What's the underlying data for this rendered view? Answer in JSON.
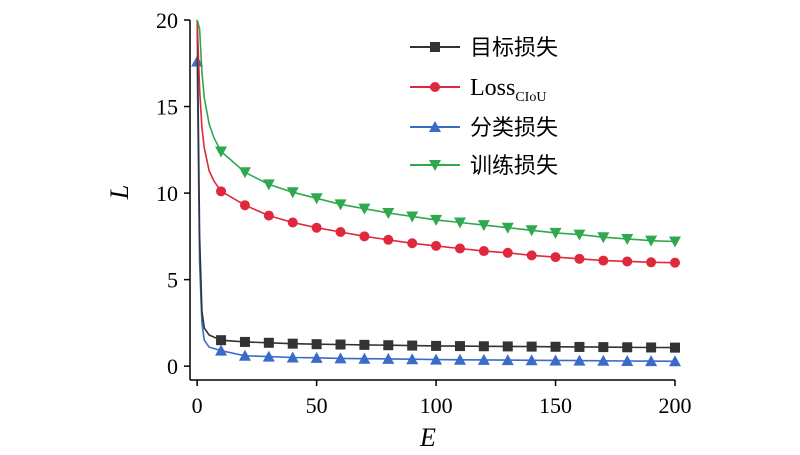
{
  "chart_data": {
    "type": "line",
    "xlabel": "E",
    "ylabel": "L",
    "xlim": [
      -3,
      200
    ],
    "ylim": [
      -0.8,
      20
    ],
    "x_ticks": [
      0,
      50,
      100,
      150,
      200
    ],
    "y_ticks": [
      0,
      5,
      10,
      15,
      20
    ],
    "legend_position": "top-right",
    "grid": false,
    "series": [
      {
        "name": "目标损失",
        "color": "#333333",
        "marker": "square",
        "x": [
          0,
          1,
          2,
          3,
          5,
          10,
          20,
          30,
          40,
          50,
          60,
          70,
          80,
          90,
          100,
          110,
          120,
          130,
          140,
          150,
          160,
          170,
          180,
          190,
          200
        ],
        "y": [
          20,
          7.5,
          3.2,
          2.2,
          1.8,
          1.5,
          1.4,
          1.35,
          1.3,
          1.27,
          1.25,
          1.23,
          1.21,
          1.19,
          1.17,
          1.16,
          1.15,
          1.14,
          1.13,
          1.12,
          1.11,
          1.1,
          1.09,
          1.08,
          1.07
        ]
      },
      {
        "name_main": "Loss",
        "name_sub": "CIoU",
        "color": "#e0283c",
        "marker": "circle",
        "x": [
          0,
          1,
          2,
          3,
          5,
          7,
          10,
          20,
          30,
          40,
          50,
          60,
          70,
          80,
          90,
          100,
          110,
          120,
          130,
          140,
          150,
          160,
          170,
          180,
          190,
          200
        ],
        "y": [
          20,
          16.0,
          13.8,
          12.6,
          11.3,
          10.7,
          10.1,
          9.3,
          8.7,
          8.3,
          8.0,
          7.75,
          7.5,
          7.3,
          7.1,
          6.95,
          6.8,
          6.65,
          6.55,
          6.4,
          6.3,
          6.2,
          6.1,
          6.05,
          6.0,
          5.98
        ]
      },
      {
        "name": "分类损失",
        "color": "#3a6bc8",
        "marker": "triangle-up",
        "x": [
          0,
          1,
          2,
          3,
          5,
          10,
          20,
          30,
          40,
          50,
          60,
          70,
          80,
          90,
          100,
          110,
          120,
          130,
          140,
          150,
          160,
          170,
          180,
          190,
          200
        ],
        "y": [
          17.6,
          6.0,
          2.5,
          1.5,
          1.1,
          0.9,
          0.6,
          0.55,
          0.5,
          0.48,
          0.45,
          0.43,
          0.42,
          0.4,
          0.38,
          0.37,
          0.36,
          0.35,
          0.34,
          0.33,
          0.32,
          0.31,
          0.3,
          0.29,
          0.28
        ]
      },
      {
        "name": "训练损失",
        "color": "#2fa84f",
        "marker": "triangle-down",
        "x": [
          0,
          1,
          2,
          3,
          5,
          7,
          10,
          20,
          30,
          40,
          50,
          60,
          70,
          80,
          90,
          100,
          110,
          120,
          130,
          140,
          150,
          160,
          170,
          180,
          190,
          200
        ],
        "y": [
          20,
          19.5,
          17.0,
          15.5,
          14.0,
          13.2,
          12.4,
          11.2,
          10.5,
          10.05,
          9.7,
          9.35,
          9.1,
          8.85,
          8.65,
          8.45,
          8.3,
          8.15,
          8.0,
          7.85,
          7.7,
          7.6,
          7.45,
          7.35,
          7.25,
          7.2
        ]
      }
    ],
    "marker_x": [
      10,
      20,
      30,
      40,
      50,
      60,
      70,
      80,
      90,
      100,
      110,
      120,
      130,
      140,
      150,
      160,
      170,
      180,
      190,
      200
    ]
  }
}
